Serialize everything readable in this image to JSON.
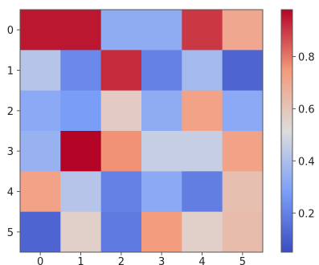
{
  "chart_data": {
    "type": "heatmap",
    "title": "",
    "xlabel": "",
    "ylabel": "",
    "x_categories": [
      "0",
      "1",
      "2",
      "3",
      "4",
      "5"
    ],
    "y_categories": [
      "0",
      "1",
      "2",
      "3",
      "4",
      "5"
    ],
    "values": [
      [
        0.95,
        0.95,
        0.33,
        0.33,
        0.9,
        0.7
      ],
      [
        0.42,
        0.22,
        0.92,
        0.2,
        0.38,
        0.12
      ],
      [
        0.32,
        0.28,
        0.58,
        0.33,
        0.72,
        0.32
      ],
      [
        0.35,
        0.98,
        0.76,
        0.46,
        0.46,
        0.72
      ],
      [
        0.72,
        0.42,
        0.2,
        0.32,
        0.19,
        0.62
      ],
      [
        0.12,
        0.56,
        0.18,
        0.74,
        0.56,
        0.63
      ]
    ],
    "colorbar": {
      "min": 0.05,
      "max": 0.98,
      "ticks": [
        0.2,
        0.4,
        0.6,
        0.8
      ],
      "tick_labels": [
        "0.2",
        "0.4",
        "0.6",
        "0.8"
      ],
      "colormap": "coolwarm"
    },
    "grid": false
  }
}
